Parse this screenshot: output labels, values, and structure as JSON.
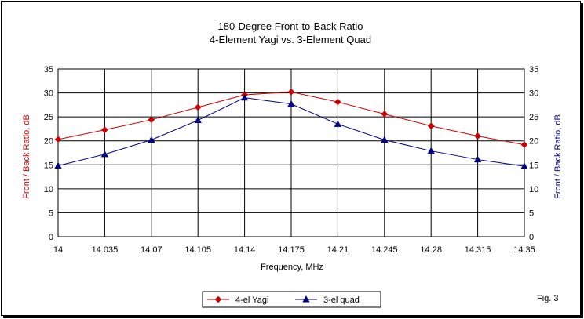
{
  "colors": {
    "yagi": "#cc0000",
    "quad": "#000080",
    "grid": "#000000",
    "left_axis_label": "#cc0000",
    "right_axis_label": "#000080"
  },
  "chart_data": {
    "type": "line",
    "title": "180-Degree Front-to-Back Ratio",
    "subtitle": "4-Element Yagi vs. 3-Element Quad",
    "xlabel": "Frequency, MHz",
    "ylabel_left": "Front / Back Ratio, dB",
    "ylabel_right": "Front / Back Ratio, dB",
    "x": [
      14,
      14.035,
      14.07,
      14.105,
      14.14,
      14.175,
      14.21,
      14.245,
      14.28,
      14.315,
      14.35
    ],
    "x_tick_labels": [
      "14",
      "14.035",
      "14.07",
      "14.105",
      "14.14",
      "14.175",
      "14.21",
      "14.245",
      "14.28",
      "14.315",
      "14.35"
    ],
    "ylim": [
      0,
      35
    ],
    "y_ticks": [
      0,
      5,
      10,
      15,
      20,
      25,
      30,
      35
    ],
    "grid": true,
    "legend_position": "bottom-center",
    "series": [
      {
        "name": "4-el Yagi",
        "marker": "diamond",
        "values": [
          20.3,
          22.3,
          24.4,
          27.0,
          29.6,
          30.2,
          28.1,
          25.6,
          23.1,
          21.0,
          19.2
        ]
      },
      {
        "name": "3-el quad",
        "marker": "triangle",
        "values": [
          14.8,
          17.2,
          20.2,
          24.3,
          29.0,
          27.7,
          23.5,
          20.2,
          17.9,
          16.1,
          14.7
        ]
      }
    ],
    "annotation": "Fig. 3"
  }
}
